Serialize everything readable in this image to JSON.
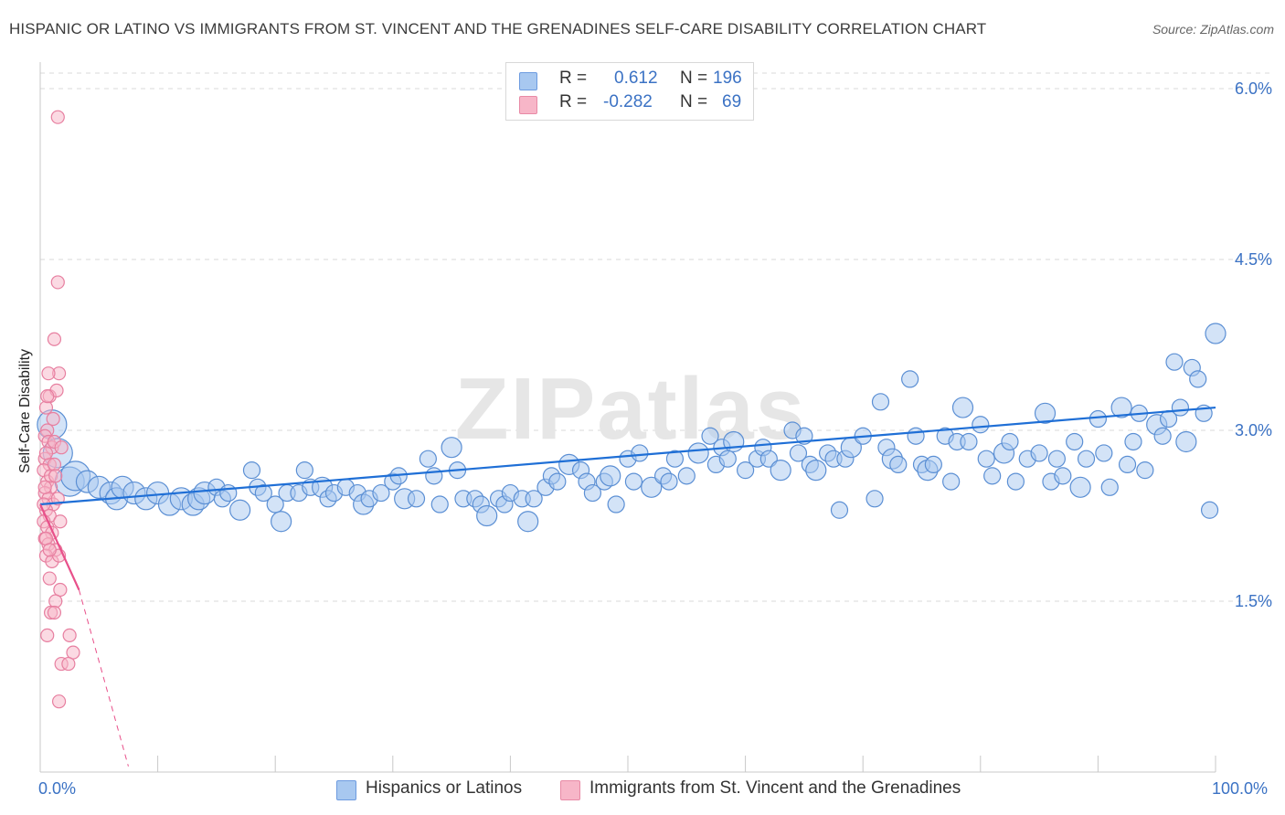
{
  "title": "HISPANIC OR LATINO VS IMMIGRANTS FROM ST. VINCENT AND THE GRENADINES SELF-CARE DISABILITY CORRELATION CHART",
  "source": "Source: ZipAtlas.com",
  "watermark": "ZIPatlas",
  "legend_top": {
    "rows": [
      {
        "r_key": "R =",
        "r_val": "0.612",
        "n_key": "N =",
        "n_val": "196",
        "color": "#a8c8f0"
      },
      {
        "r_key": "R =",
        "r_val": "-0.282",
        "n_key": "N =",
        "n_val": "69",
        "color": "#f7b6c8"
      }
    ]
  },
  "bottom_legend": [
    {
      "label": "Hispanics or Latinos",
      "color": "#a8c8f0"
    },
    {
      "label": "Immigrants from St. Vincent and the Grenadines",
      "color": "#f7b6c8"
    }
  ],
  "x_axis": {
    "min_label": "0.0%",
    "max_label": "100.0%"
  },
  "chart_data": {
    "type": "scatter",
    "title": "HISPANIC OR LATINO VS IMMIGRANTS FROM ST. VINCENT AND THE GRENADINES SELF-CARE DISABILITY CORRELATION CHART",
    "xlabel": "",
    "ylabel": "Self-Care Disability",
    "xlim": [
      0,
      100
    ],
    "ylim": [
      0,
      6.0
    ],
    "y_ticks": [
      1.5,
      3.0,
      4.5,
      6.0
    ],
    "y_tick_labels": [
      "1.5%",
      "3.0%",
      "4.5%",
      "6.0%"
    ],
    "grid": true,
    "legend_position": "top-center",
    "series": [
      {
        "name": "Hispanics or Latinos",
        "color": "#a8c8f0",
        "stroke": "#5b8fd4",
        "trend": {
          "x": [
            0,
            100
          ],
          "y": [
            2.35,
            3.2
          ]
        },
        "points": [
          [
            1,
            3.05
          ],
          [
            1.5,
            2.8
          ],
          [
            2.5,
            2.55
          ],
          [
            3,
            2.6
          ],
          [
            4,
            2.55
          ],
          [
            5,
            2.5
          ],
          [
            6,
            2.45
          ],
          [
            6.5,
            2.4
          ],
          [
            7,
            2.5
          ],
          [
            8,
            2.45
          ],
          [
            9,
            2.4
          ],
          [
            10,
            2.45
          ],
          [
            11,
            2.35
          ],
          [
            12,
            2.4
          ],
          [
            13,
            2.35
          ],
          [
            13.5,
            2.4
          ],
          [
            14,
            2.45
          ],
          [
            15,
            2.5
          ],
          [
            15.5,
            2.4
          ],
          [
            16,
            2.45
          ],
          [
            17,
            2.3
          ],
          [
            18,
            2.65
          ],
          [
            18.5,
            2.5
          ],
          [
            19,
            2.45
          ],
          [
            20,
            2.35
          ],
          [
            20.5,
            2.2
          ],
          [
            21,
            2.45
          ],
          [
            22,
            2.45
          ],
          [
            22.5,
            2.65
          ],
          [
            23,
            2.5
          ],
          [
            24,
            2.5
          ],
          [
            24.5,
            2.4
          ],
          [
            25,
            2.45
          ],
          [
            26,
            2.5
          ],
          [
            27,
            2.45
          ],
          [
            27.5,
            2.35
          ],
          [
            28,
            2.4
          ],
          [
            29,
            2.45
          ],
          [
            30,
            2.55
          ],
          [
            30.5,
            2.6
          ],
          [
            31,
            2.4
          ],
          [
            32,
            2.4
          ],
          [
            33,
            2.75
          ],
          [
            33.5,
            2.6
          ],
          [
            34,
            2.35
          ],
          [
            35,
            2.85
          ],
          [
            35.5,
            2.65
          ],
          [
            36,
            2.4
          ],
          [
            37,
            2.4
          ],
          [
            37.5,
            2.35
          ],
          [
            38,
            2.25
          ],
          [
            39,
            2.4
          ],
          [
            39.5,
            2.35
          ],
          [
            40,
            2.45
          ],
          [
            41,
            2.4
          ],
          [
            41.5,
            2.2
          ],
          [
            42,
            2.4
          ],
          [
            43,
            2.5
          ],
          [
            43.5,
            2.6
          ],
          [
            44,
            2.55
          ],
          [
            45,
            2.7
          ],
          [
            46,
            2.65
          ],
          [
            46.5,
            2.55
          ],
          [
            47,
            2.45
          ],
          [
            48,
            2.55
          ],
          [
            48.5,
            2.6
          ],
          [
            49,
            2.35
          ],
          [
            50,
            2.75
          ],
          [
            50.5,
            2.55
          ],
          [
            51,
            2.8
          ],
          [
            52,
            2.5
          ],
          [
            53,
            2.6
          ],
          [
            53.5,
            2.55
          ],
          [
            54,
            2.75
          ],
          [
            55,
            2.6
          ],
          [
            56,
            2.8
          ],
          [
            57,
            2.95
          ],
          [
            57.5,
            2.7
          ],
          [
            58,
            2.85
          ],
          [
            58.5,
            2.75
          ],
          [
            59,
            2.9
          ],
          [
            60,
            2.65
          ],
          [
            61,
            2.75
          ],
          [
            61.5,
            2.85
          ],
          [
            62,
            2.75
          ],
          [
            63,
            2.65
          ],
          [
            64,
            3.0
          ],
          [
            64.5,
            2.8
          ],
          [
            65,
            2.95
          ],
          [
            65.5,
            2.7
          ],
          [
            66,
            2.65
          ],
          [
            67,
            2.8
          ],
          [
            67.5,
            2.75
          ],
          [
            68,
            2.3
          ],
          [
            68.5,
            2.75
          ],
          [
            69,
            2.85
          ],
          [
            70,
            2.95
          ],
          [
            71,
            2.4
          ],
          [
            71.5,
            3.25
          ],
          [
            72,
            2.85
          ],
          [
            72.5,
            2.75
          ],
          [
            73,
            2.7
          ],
          [
            74,
            3.45
          ],
          [
            74.5,
            2.95
          ],
          [
            75,
            2.7
          ],
          [
            75.5,
            2.65
          ],
          [
            76,
            2.7
          ],
          [
            77,
            2.95
          ],
          [
            77.5,
            2.55
          ],
          [
            78,
            2.9
          ],
          [
            78.5,
            3.2
          ],
          [
            79,
            2.9
          ],
          [
            80,
            3.05
          ],
          [
            80.5,
            2.75
          ],
          [
            81,
            2.6
          ],
          [
            82,
            2.8
          ],
          [
            82.5,
            2.9
          ],
          [
            83,
            2.55
          ],
          [
            84,
            2.75
          ],
          [
            85,
            2.8
          ],
          [
            85.5,
            3.15
          ],
          [
            86,
            2.55
          ],
          [
            86.5,
            2.75
          ],
          [
            87,
            2.6
          ],
          [
            88,
            2.9
          ],
          [
            88.5,
            2.5
          ],
          [
            89,
            2.75
          ],
          [
            90,
            3.1
          ],
          [
            90.5,
            2.8
          ],
          [
            91,
            2.5
          ],
          [
            92,
            3.2
          ],
          [
            92.5,
            2.7
          ],
          [
            93,
            2.9
          ],
          [
            93.5,
            3.15
          ],
          [
            94,
            2.65
          ],
          [
            95,
            3.05
          ],
          [
            95.5,
            2.95
          ],
          [
            96,
            3.1
          ],
          [
            96.5,
            3.6
          ],
          [
            97,
            3.2
          ],
          [
            97.5,
            2.9
          ],
          [
            98,
            3.55
          ],
          [
            98.5,
            3.45
          ],
          [
            99,
            3.15
          ],
          [
            99.5,
            2.3
          ],
          [
            100,
            3.85
          ]
        ]
      },
      {
        "name": "Immigrants from St. Vincent and the Grenadines",
        "color": "#f7b6c8",
        "stroke": "#e77fa0",
        "trend": {
          "x": [
            0,
            3.3
          ],
          "y": [
            2.35,
            1.6
          ]
        },
        "trend_dashed": {
          "x": [
            3.3,
            7.5
          ],
          "y": [
            1.6,
            0.05
          ]
        },
        "points": [
          [
            1.5,
            5.75
          ],
          [
            1.5,
            4.3
          ],
          [
            1.2,
            3.8
          ],
          [
            1.6,
            3.5
          ],
          [
            0.7,
            3.5
          ],
          [
            0.8,
            3.3
          ],
          [
            1.4,
            3.35
          ],
          [
            0.5,
            3.2
          ],
          [
            0.6,
            3.0
          ],
          [
            0.4,
            2.95
          ],
          [
            0.7,
            2.9
          ],
          [
            1.0,
            2.85
          ],
          [
            1.2,
            2.9
          ],
          [
            0.4,
            2.75
          ],
          [
            0.8,
            2.7
          ],
          [
            0.3,
            2.65
          ],
          [
            0.6,
            2.55
          ],
          [
            0.9,
            2.5
          ],
          [
            0.4,
            2.45
          ],
          [
            0.7,
            2.4
          ],
          [
            1.1,
            2.35
          ],
          [
            1.5,
            2.4
          ],
          [
            0.5,
            2.3
          ],
          [
            0.8,
            2.25
          ],
          [
            0.3,
            2.2
          ],
          [
            0.6,
            2.15
          ],
          [
            1.0,
            2.1
          ],
          [
            0.4,
            2.05
          ],
          [
            0.7,
            2.0
          ],
          [
            1.3,
            1.95
          ],
          [
            0.5,
            1.9
          ],
          [
            1.0,
            1.85
          ],
          [
            1.6,
            1.9
          ],
          [
            0.8,
            1.7
          ],
          [
            1.7,
            1.6
          ],
          [
            1.3,
            1.5
          ],
          [
            0.9,
            1.4
          ],
          [
            1.2,
            1.4
          ],
          [
            0.6,
            1.2
          ],
          [
            2.5,
            1.2
          ],
          [
            2.8,
            1.05
          ],
          [
            1.8,
            0.95
          ],
          [
            2.4,
            0.95
          ],
          [
            1.6,
            0.62
          ],
          [
            0.5,
            2.8
          ],
          [
            0.9,
            2.6
          ],
          [
            0.3,
            2.35
          ],
          [
            1.8,
            2.85
          ],
          [
            1.1,
            3.1
          ],
          [
            0.6,
            3.3
          ],
          [
            1.2,
            2.7
          ],
          [
            0.5,
            2.05
          ],
          [
            0.8,
            1.95
          ],
          [
            1.3,
            2.6
          ],
          [
            0.4,
            2.5
          ],
          [
            1.7,
            2.2
          ]
        ]
      }
    ]
  }
}
